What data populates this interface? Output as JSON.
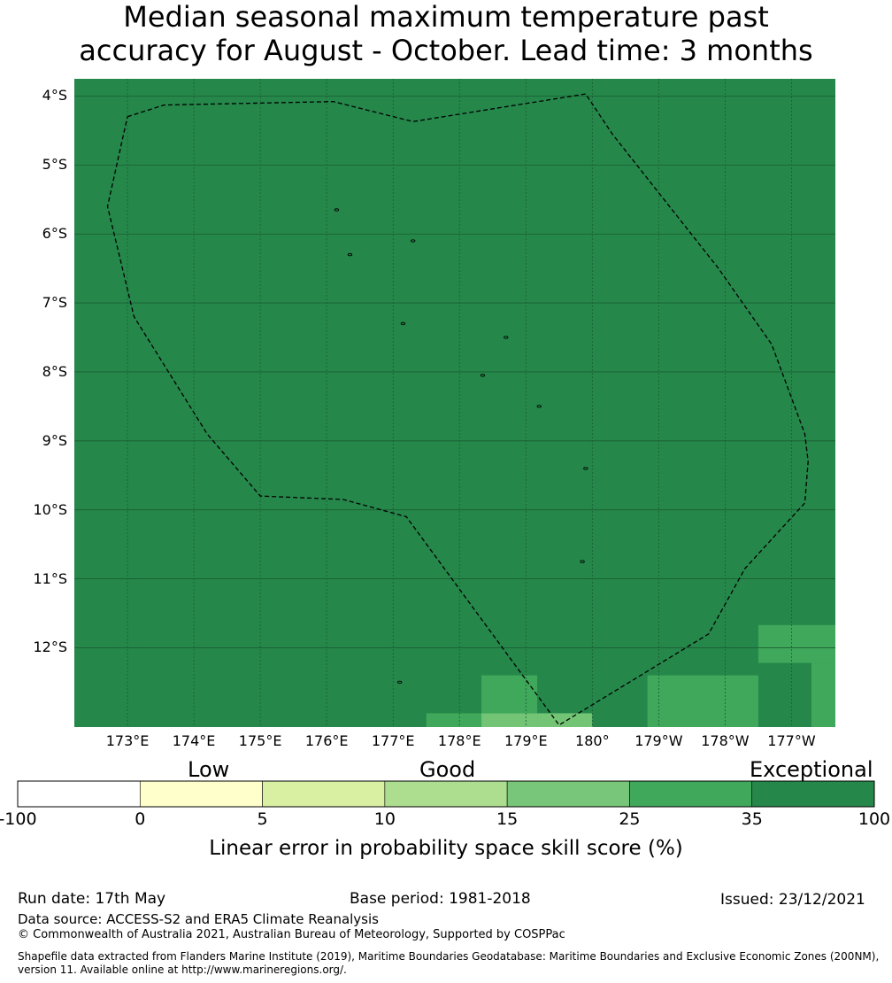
{
  "title": {
    "line1": "Median seasonal maximum temperature past",
    "line2": "accuracy for August - October. Lead time: 3 months"
  },
  "map": {
    "lat_labels": [
      "4°S",
      "5°S",
      "6°S",
      "7°S",
      "8°S",
      "9°S",
      "10°S",
      "11°S",
      "12°S"
    ],
    "lat_values": [
      -4,
      -5,
      -6,
      -7,
      -8,
      -9,
      -10,
      -11,
      -12
    ],
    "lon_labels": [
      "173°E",
      "174°E",
      "175°E",
      "176°E",
      "177°E",
      "178°E",
      "179°E",
      "180°",
      "179°W",
      "178°W",
      "177°W"
    ],
    "lon_values": [
      173,
      174,
      175,
      176,
      177,
      178,
      179,
      180,
      181,
      182,
      183
    ],
    "extent": {
      "lon_min": 172.2,
      "lon_max": 183.66,
      "lat_min": -13.15,
      "lat_max": -3.75
    },
    "background_color": "#25874a",
    "cells": [
      {
        "lon0": 177.5,
        "lon1": 178.33,
        "lat0": -13.15,
        "lat1": -12.95,
        "color": "#3fa85b"
      },
      {
        "lon0": 178.33,
        "lon1": 179.17,
        "lat0": -13.15,
        "lat1": -12.95,
        "color": "#74c476"
      },
      {
        "lon0": 179.17,
        "lon1": 180.0,
        "lat0": -13.15,
        "lat1": -12.95,
        "color": "#74c476"
      },
      {
        "lon0": 178.33,
        "lon1": 179.17,
        "lat0": -12.95,
        "lat1": -12.4,
        "color": "#3fa85b"
      },
      {
        "lon0": 180.83,
        "lon1": 182.5,
        "lat0": -13.15,
        "lat1": -12.4,
        "color": "#3fa85b"
      },
      {
        "lon0": 182.5,
        "lon1": 183.66,
        "lat0": -12.22,
        "lat1": -11.67,
        "color": "#3fa85b"
      },
      {
        "lon0": 183.3,
        "lon1": 183.66,
        "lat0": -13.15,
        "lat1": -12.22,
        "color": "#3fa85b"
      }
    ],
    "boundary": [
      [
        173.0,
        -4.3
      ],
      [
        173.55,
        -4.13
      ],
      [
        176.1,
        -4.08
      ],
      [
        177.3,
        -4.37
      ],
      [
        179.9,
        -3.97
      ],
      [
        180.3,
        -4.55
      ],
      [
        181.9,
        -6.5
      ],
      [
        182.7,
        -7.6
      ],
      [
        183.2,
        -8.9
      ],
      [
        183.25,
        -9.3
      ],
      [
        183.2,
        -9.9
      ],
      [
        182.3,
        -10.85
      ],
      [
        181.75,
        -11.8
      ],
      [
        179.5,
        -13.12
      ],
      [
        177.2,
        -10.1
      ],
      [
        176.25,
        -9.85
      ],
      [
        175.0,
        -9.8
      ],
      [
        174.2,
        -8.9
      ],
      [
        173.1,
        -7.2
      ],
      [
        172.7,
        -5.6
      ],
      [
        173.0,
        -4.3
      ]
    ],
    "islands": [
      [
        176.15,
        -5.65
      ],
      [
        176.35,
        -6.3
      ],
      [
        177.3,
        -6.1
      ],
      [
        177.15,
        -7.3
      ],
      [
        178.7,
        -7.5
      ],
      [
        178.35,
        -8.05
      ],
      [
        179.2,
        -8.5
      ],
      [
        179.9,
        -9.4
      ],
      [
        179.85,
        -10.75
      ],
      [
        177.1,
        -12.5
      ]
    ]
  },
  "legend": {
    "categories": [
      "Low",
      "Good",
      "Exceptional"
    ],
    "ticks": [
      "-100",
      "0",
      "5",
      "10",
      "15",
      "25",
      "35",
      "100"
    ],
    "colors": [
      "#ffffff",
      "#ffffcc",
      "#d9f0a3",
      "#addd8e",
      "#78c679",
      "#3fa85b",
      "#25874a"
    ],
    "title": "Linear error in probability space skill score (%)"
  },
  "footer": {
    "run_date": "Run date: 17th May",
    "base_period": "Base period: 1981-2018",
    "issued": "Issued: 23/12/2021",
    "data_source": "Data source: ACCESS-S2 and ERA5 Climate Reanalysis",
    "copyright": "© Commonwealth of Australia 2021, Australian Bureau of Meteorology, Supported by COSPPac",
    "shapefile_line1": "Shapefile data extracted from Flanders Marine Institute (2019), Maritime Boundaries Geodatabase: Maritime Boundaries and Exclusive Economic Zones (200NM),",
    "shapefile_line2": "version 11. Available online at http://www.marineregions.org/."
  }
}
